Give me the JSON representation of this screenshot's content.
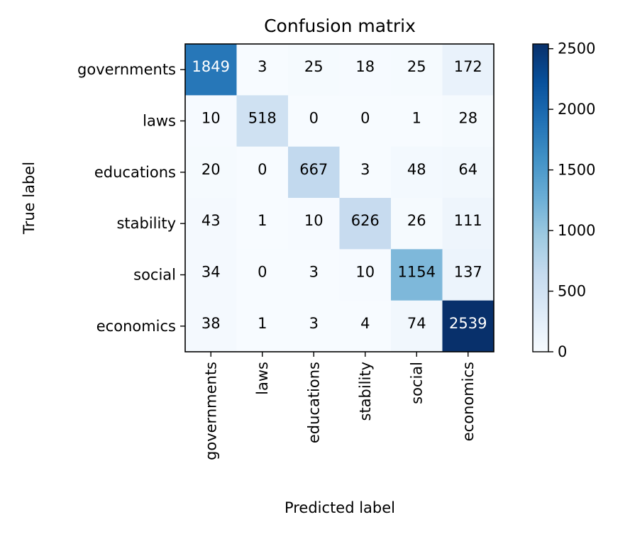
{
  "chart_data": {
    "type": "heatmap",
    "title": "Confusion matrix",
    "xlabel": "Predicted label",
    "ylabel": "True label",
    "x_categories": [
      "governments",
      "laws",
      "educations",
      "stability",
      "social",
      "economics"
    ],
    "y_categories": [
      "governments",
      "laws",
      "educations",
      "stability",
      "social",
      "economics"
    ],
    "values": [
      [
        1849,
        3,
        25,
        18,
        25,
        172
      ],
      [
        10,
        518,
        0,
        0,
        1,
        28
      ],
      [
        20,
        0,
        667,
        3,
        48,
        64
      ],
      [
        43,
        1,
        10,
        626,
        26,
        111
      ],
      [
        34,
        0,
        3,
        10,
        1154,
        137
      ],
      [
        38,
        1,
        3,
        4,
        74,
        2539
      ]
    ],
    "colormap": "Blues",
    "colorbar": {
      "range": [
        0,
        2539
      ],
      "ticks": [
        0,
        500,
        1000,
        1500,
        2000,
        2500
      ]
    },
    "colors": {
      "low": "#f7fbff",
      "high": "#08306b"
    }
  }
}
